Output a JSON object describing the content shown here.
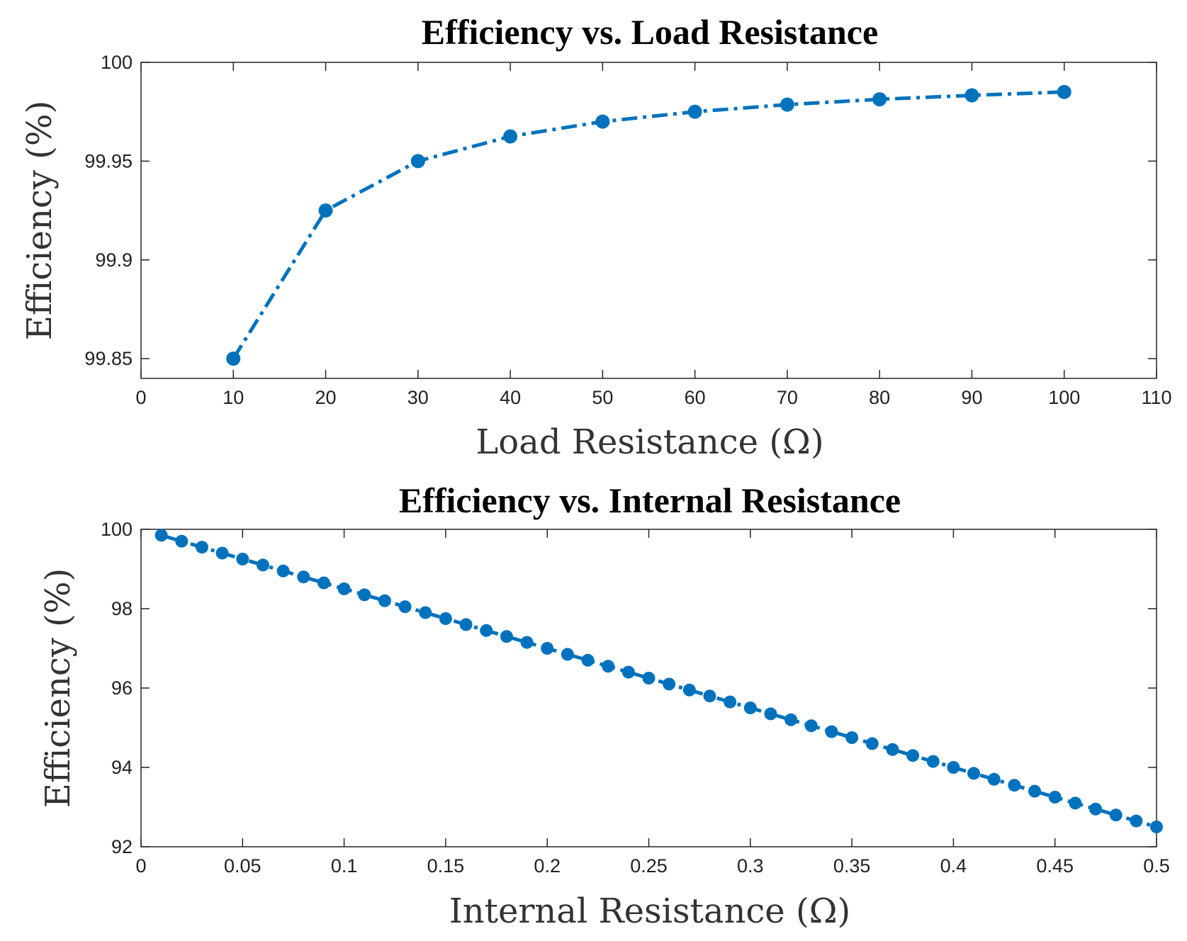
{
  "chart_data": [
    {
      "type": "line",
      "title": "Efficiency vs. Load Resistance",
      "xlabel": "Load Resistance (Ω)",
      "ylabel": "Efficiency (%)",
      "xlim": [
        0,
        110
      ],
      "ylim": [
        99.84,
        100
      ],
      "xticks": [
        0,
        10,
        20,
        30,
        40,
        50,
        60,
        70,
        80,
        90,
        100,
        110
      ],
      "yticks": [
        99.85,
        99.9,
        99.95,
        100
      ],
      "ytick_labels": [
        "99.85",
        "99.9",
        "99.95",
        "100"
      ],
      "grid": false,
      "series": [
        {
          "name": "Efficiency",
          "color": "#0072BD",
          "line_style": "dash-dot",
          "marker": "circle",
          "x": [
            10,
            20,
            30,
            40,
            50,
            60,
            70,
            80,
            90,
            100
          ],
          "values": [
            99.85,
            99.925,
            99.95,
            99.9625,
            99.97,
            99.975,
            99.9786,
            99.9813,
            99.9833,
            99.985
          ]
        }
      ]
    },
    {
      "type": "line",
      "title": "Efficiency vs. Internal Resistance",
      "xlabel": "Internal Resistance (Ω)",
      "ylabel": "Efficiency (%)",
      "xlim": [
        0,
        0.5
      ],
      "ylim": [
        92,
        100
      ],
      "xticks": [
        0,
        0.05,
        0.1,
        0.15,
        0.2,
        0.25,
        0.3,
        0.35,
        0.4,
        0.45,
        0.5
      ],
      "xtick_labels": [
        "0",
        "0.05",
        "0.1",
        "0.15",
        "0.2",
        "0.25",
        "0.3",
        "0.35",
        "0.4",
        "0.45",
        "0.5"
      ],
      "yticks": [
        92,
        94,
        96,
        98,
        100
      ],
      "ytick_labels": [
        "92",
        "94",
        "96",
        "98",
        "100"
      ],
      "grid": false,
      "series": [
        {
          "name": "Efficiency",
          "color": "#0072BD",
          "line_style": "dash-dot",
          "marker": "circle",
          "x": [
            0.01,
            0.02,
            0.03,
            0.04,
            0.05,
            0.06,
            0.07,
            0.08,
            0.09,
            0.1,
            0.11,
            0.12,
            0.13,
            0.14,
            0.15,
            0.16,
            0.17,
            0.18,
            0.19,
            0.2,
            0.21,
            0.22,
            0.23,
            0.24,
            0.25,
            0.26,
            0.27,
            0.28,
            0.29,
            0.3,
            0.31,
            0.32,
            0.33,
            0.34,
            0.35,
            0.36,
            0.37,
            0.38,
            0.39,
            0.4,
            0.41,
            0.42,
            0.43,
            0.44,
            0.45,
            0.46,
            0.47,
            0.48,
            0.49,
            0.5
          ],
          "values": [
            99.85,
            99.7,
            99.55,
            99.4,
            99.25,
            99.1,
            98.95,
            98.8,
            98.65,
            98.5,
            98.35,
            98.2,
            98.05,
            97.9,
            97.75,
            97.6,
            97.45,
            97.3,
            97.15,
            97.0,
            96.85,
            96.7,
            96.55,
            96.4,
            96.25,
            96.1,
            95.95,
            95.8,
            95.65,
            95.5,
            95.35,
            95.2,
            95.05,
            94.9,
            94.75,
            94.6,
            94.45,
            94.3,
            94.15,
            94.0,
            93.85,
            93.7,
            93.55,
            93.4,
            93.25,
            93.1,
            92.95,
            92.8,
            92.65,
            92.5
          ]
        }
      ]
    }
  ]
}
